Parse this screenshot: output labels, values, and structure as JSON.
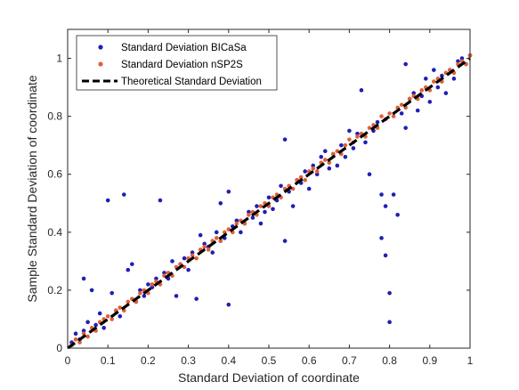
{
  "chart_data": {
    "type": "scatter",
    "xlabel": "Standard Deviation of coordinate",
    "ylabel": "Sample Standard Deviation of coordinate",
    "xlim": [
      0,
      1
    ],
    "ylim": [
      0,
      1.1
    ],
    "xticks": [
      "0",
      "0.1",
      "0.2",
      "0.3",
      "0.4",
      "0.5",
      "0.6",
      "0.7",
      "0.8",
      "0.9",
      "1"
    ],
    "yticks": [
      "0",
      "0.2",
      "0.4",
      "0.6",
      "0.8",
      "1"
    ],
    "grid": false,
    "legend_position": "top-left",
    "colors": {
      "bicasa": "#1f1fb4",
      "nsp2s": "#e0603a",
      "theory": "#000000"
    },
    "series": [
      {
        "name": "Standard Deviation BICaSa",
        "marker": "dot",
        "points": [
          [
            0.01,
            0.02
          ],
          [
            0.02,
            0.05
          ],
          [
            0.03,
            0.03
          ],
          [
            0.04,
            0.06
          ],
          [
            0.04,
            0.24
          ],
          [
            0.05,
            0.09
          ],
          [
            0.06,
            0.2
          ],
          [
            0.07,
            0.08
          ],
          [
            0.08,
            0.12
          ],
          [
            0.09,
            0.07
          ],
          [
            0.1,
            0.51
          ],
          [
            0.11,
            0.19
          ],
          [
            0.12,
            0.13
          ],
          [
            0.13,
            0.11
          ],
          [
            0.14,
            0.53
          ],
          [
            0.15,
            0.27
          ],
          [
            0.16,
            0.29
          ],
          [
            0.17,
            0.16
          ],
          [
            0.18,
            0.2
          ],
          [
            0.19,
            0.18
          ],
          [
            0.2,
            0.22
          ],
          [
            0.21,
            0.21
          ],
          [
            0.22,
            0.24
          ],
          [
            0.23,
            0.51
          ],
          [
            0.24,
            0.26
          ],
          [
            0.25,
            0.24
          ],
          [
            0.26,
            0.3
          ],
          [
            0.27,
            0.18
          ],
          [
            0.28,
            0.29
          ],
          [
            0.29,
            0.31
          ],
          [
            0.3,
            0.27
          ],
          [
            0.31,
            0.33
          ],
          [
            0.32,
            0.17
          ],
          [
            0.33,
            0.39
          ],
          [
            0.34,
            0.36
          ],
          [
            0.35,
            0.35
          ],
          [
            0.36,
            0.33
          ],
          [
            0.37,
            0.4
          ],
          [
            0.38,
            0.37
          ],
          [
            0.38,
            0.5
          ],
          [
            0.39,
            0.38
          ],
          [
            0.4,
            0.54
          ],
          [
            0.4,
            0.15
          ],
          [
            0.41,
            0.42
          ],
          [
            0.42,
            0.44
          ],
          [
            0.43,
            0.4
          ],
          [
            0.44,
            0.43
          ],
          [
            0.45,
            0.47
          ],
          [
            0.46,
            0.45
          ],
          [
            0.47,
            0.49
          ],
          [
            0.48,
            0.43
          ],
          [
            0.49,
            0.47
          ],
          [
            0.5,
            0.52
          ],
          [
            0.51,
            0.48
          ],
          [
            0.52,
            0.51
          ],
          [
            0.53,
            0.56
          ],
          [
            0.54,
            0.37
          ],
          [
            0.54,
            0.72
          ],
          [
            0.55,
            0.54
          ],
          [
            0.56,
            0.49
          ],
          [
            0.57,
            0.58
          ],
          [
            0.58,
            0.57
          ],
          [
            0.59,
            0.61
          ],
          [
            0.6,
            0.55
          ],
          [
            0.61,
            0.63
          ],
          [
            0.62,
            0.6
          ],
          [
            0.63,
            0.66
          ],
          [
            0.64,
            0.68
          ],
          [
            0.65,
            0.62
          ],
          [
            0.66,
            0.67
          ],
          [
            0.67,
            0.63
          ],
          [
            0.68,
            0.7
          ],
          [
            0.69,
            0.66
          ],
          [
            0.7,
            0.75
          ],
          [
            0.71,
            0.69
          ],
          [
            0.72,
            0.74
          ],
          [
            0.73,
            0.89
          ],
          [
            0.74,
            0.71
          ],
          [
            0.75,
            0.6
          ],
          [
            0.76,
            0.75
          ],
          [
            0.77,
            0.78
          ],
          [
            0.78,
            0.53
          ],
          [
            0.78,
            0.38
          ],
          [
            0.79,
            0.32
          ],
          [
            0.79,
            0.49
          ],
          [
            0.8,
            0.19
          ],
          [
            0.8,
            0.09
          ],
          [
            0.81,
            0.53
          ],
          [
            0.82,
            0.46
          ],
          [
            0.83,
            0.81
          ],
          [
            0.84,
            0.76
          ],
          [
            0.84,
            0.98
          ],
          [
            0.85,
            0.86
          ],
          [
            0.86,
            0.88
          ],
          [
            0.87,
            0.82
          ],
          [
            0.88,
            0.87
          ],
          [
            0.89,
            0.93
          ],
          [
            0.9,
            0.85
          ],
          [
            0.91,
            0.96
          ],
          [
            0.92,
            0.9
          ],
          [
            0.93,
            0.94
          ],
          [
            0.94,
            0.88
          ],
          [
            0.95,
            0.96
          ],
          [
            0.96,
            0.93
          ],
          [
            0.97,
            0.99
          ],
          [
            0.98,
            1.0
          ],
          [
            0.99,
            0.98
          ],
          [
            1.0,
            1.01
          ]
        ]
      },
      {
        "name": "Standard Deviation nSP2S",
        "marker": "dot",
        "points": [
          [
            0.01,
            0.01
          ],
          [
            0.02,
            0.03
          ],
          [
            0.03,
            0.02
          ],
          [
            0.04,
            0.05
          ],
          [
            0.05,
            0.04
          ],
          [
            0.06,
            0.07
          ],
          [
            0.07,
            0.06
          ],
          [
            0.08,
            0.09
          ],
          [
            0.09,
            0.1
          ],
          [
            0.1,
            0.11
          ],
          [
            0.11,
            0.1
          ],
          [
            0.12,
            0.13
          ],
          [
            0.13,
            0.14
          ],
          [
            0.14,
            0.13
          ],
          [
            0.15,
            0.16
          ],
          [
            0.16,
            0.17
          ],
          [
            0.17,
            0.16
          ],
          [
            0.18,
            0.19
          ],
          [
            0.19,
            0.2
          ],
          [
            0.2,
            0.19
          ],
          [
            0.21,
            0.22
          ],
          [
            0.22,
            0.23
          ],
          [
            0.23,
            0.22
          ],
          [
            0.24,
            0.25
          ],
          [
            0.25,
            0.26
          ],
          [
            0.26,
            0.25
          ],
          [
            0.27,
            0.28
          ],
          [
            0.28,
            0.29
          ],
          [
            0.29,
            0.28
          ],
          [
            0.3,
            0.31
          ],
          [
            0.31,
            0.32
          ],
          [
            0.32,
            0.31
          ],
          [
            0.33,
            0.34
          ],
          [
            0.34,
            0.35
          ],
          [
            0.35,
            0.34
          ],
          [
            0.36,
            0.37
          ],
          [
            0.37,
            0.38
          ],
          [
            0.38,
            0.37
          ],
          [
            0.39,
            0.4
          ],
          [
            0.4,
            0.41
          ],
          [
            0.41,
            0.4
          ],
          [
            0.42,
            0.43
          ],
          [
            0.43,
            0.44
          ],
          [
            0.44,
            0.43
          ],
          [
            0.45,
            0.46
          ],
          [
            0.46,
            0.47
          ],
          [
            0.47,
            0.46
          ],
          [
            0.48,
            0.49
          ],
          [
            0.49,
            0.5
          ],
          [
            0.5,
            0.49
          ],
          [
            0.51,
            0.52
          ],
          [
            0.52,
            0.53
          ],
          [
            0.53,
            0.52
          ],
          [
            0.54,
            0.55
          ],
          [
            0.55,
            0.56
          ],
          [
            0.56,
            0.55
          ],
          [
            0.57,
            0.58
          ],
          [
            0.58,
            0.59
          ],
          [
            0.59,
            0.58
          ],
          [
            0.6,
            0.61
          ],
          [
            0.61,
            0.62
          ],
          [
            0.62,
            0.61
          ],
          [
            0.63,
            0.64
          ],
          [
            0.64,
            0.65
          ],
          [
            0.65,
            0.64
          ],
          [
            0.66,
            0.67
          ],
          [
            0.67,
            0.68
          ],
          [
            0.68,
            0.67
          ],
          [
            0.69,
            0.7
          ],
          [
            0.7,
            0.72
          ],
          [
            0.71,
            0.71
          ],
          [
            0.72,
            0.73
          ],
          [
            0.73,
            0.74
          ],
          [
            0.74,
            0.73
          ],
          [
            0.75,
            0.76
          ],
          [
            0.76,
            0.77
          ],
          [
            0.77,
            0.76
          ],
          [
            0.78,
            0.8
          ],
          [
            0.79,
            0.79
          ],
          [
            0.8,
            0.81
          ],
          [
            0.81,
            0.8
          ],
          [
            0.82,
            0.83
          ],
          [
            0.83,
            0.84
          ],
          [
            0.84,
            0.83
          ],
          [
            0.85,
            0.86
          ],
          [
            0.86,
            0.87
          ],
          [
            0.87,
            0.86
          ],
          [
            0.88,
            0.89
          ],
          [
            0.89,
            0.9
          ],
          [
            0.9,
            0.89
          ],
          [
            0.91,
            0.92
          ],
          [
            0.92,
            0.93
          ],
          [
            0.93,
            0.92
          ],
          [
            0.94,
            0.95
          ],
          [
            0.95,
            0.96
          ],
          [
            0.96,
            0.95
          ],
          [
            0.97,
            0.98
          ],
          [
            0.98,
            0.99
          ],
          [
            0.99,
            0.98
          ],
          [
            1.0,
            1.01
          ]
        ]
      },
      {
        "name": "Theoretical Standard Deviation",
        "marker": "dashed-line",
        "points": [
          [
            0,
            0
          ],
          [
            1,
            1
          ]
        ]
      }
    ]
  }
}
